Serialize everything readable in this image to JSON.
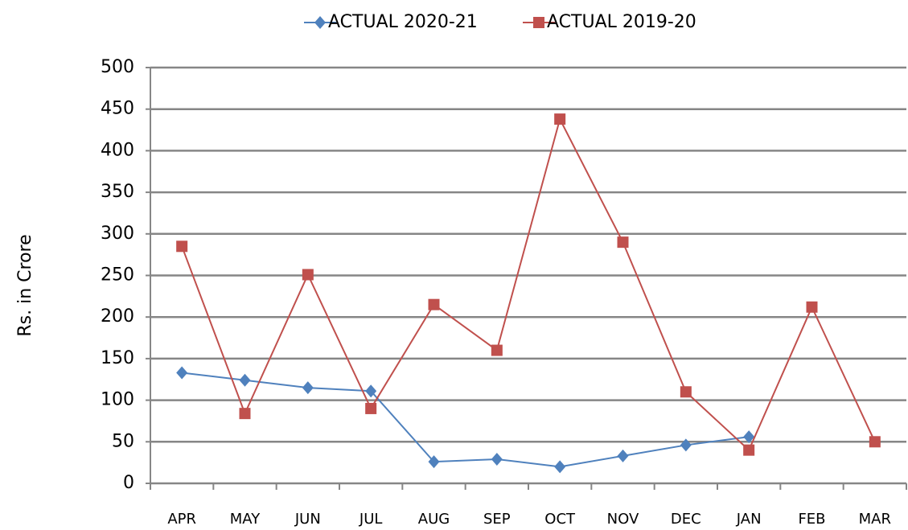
{
  "chart_data": {
    "type": "line",
    "y_label": "Rs. in Crore",
    "categories": [
      "APR",
      "MAY",
      "JUN",
      "JUL",
      "AUG",
      "SEP",
      "OCT",
      "NOV",
      "DEC",
      "JAN",
      "FEB",
      "MAR"
    ],
    "series": [
      {
        "name": "ACTUAL 2020-21",
        "color": "#4f81bd",
        "marker": "diamond",
        "values": [
          133,
          124,
          115,
          111,
          26,
          29,
          20,
          33,
          46,
          56,
          null,
          null
        ]
      },
      {
        "name": "ACTUAL 2019-20",
        "color": "#c0504d",
        "marker": "square",
        "values": [
          285,
          84,
          251,
          90,
          215,
          160,
          438,
          290,
          110,
          40,
          212,
          50
        ]
      }
    ],
    "ylim": [
      0,
      500
    ],
    "yticks": [
      0,
      50,
      100,
      150,
      200,
      250,
      300,
      350,
      400,
      450,
      500
    ],
    "grid": true,
    "legend": "top"
  }
}
